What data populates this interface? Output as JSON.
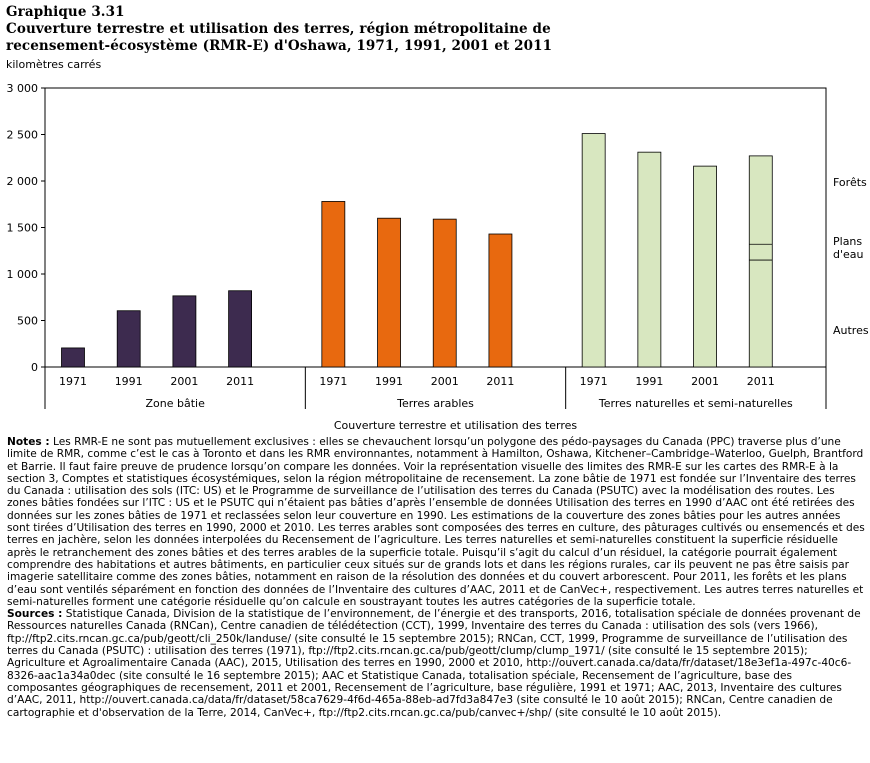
{
  "title": {
    "line1": "Graphique  3.31",
    "line2": "Couverture terrestre et utilisation des terres, région métropolitaine de",
    "line3": "recensement-écosystème (RMR-E) d'Oshawa, 1971, 1991, 2001 et 2011"
  },
  "unit_label": "kilomètres carrés",
  "chart_data": {
    "type": "bar",
    "title": "Couverture terrestre et utilisation des terres, région métropolitaine de recensement-écosystème (RMR-E) d'Oshawa, 1971, 1991, 2001 et 2011",
    "xlabel": "Couverture terrestre et utilisation des terres",
    "ylabel": "kilomètres carrés",
    "ylim": [
      0,
      3000
    ],
    "yticks": [
      0,
      500,
      1000,
      1500,
      2000,
      2500,
      3000
    ],
    "ytick_labels": [
      "0",
      "500",
      "1 000",
      "1 500",
      "2 000",
      "2 500",
      "3 000"
    ],
    "groups": [
      {
        "name": "Zone bâtie",
        "color": "#3d2b4f",
        "categories": [
          "1971",
          "1991",
          "2001",
          "2011"
        ],
        "values": [
          205,
          605,
          765,
          820
        ]
      },
      {
        "name": "Terres arables",
        "color": "#e8690f",
        "categories": [
          "1971",
          "1991",
          "2001",
          "2011"
        ],
        "values": [
          1780,
          1600,
          1590,
          1430
        ]
      },
      {
        "name": "Terres naturelles et semi-naturelles",
        "color": "#d8e7c0",
        "categories": [
          "1971",
          "1991",
          "2001",
          "2011"
        ],
        "values": [
          2510,
          2310,
          2160,
          2270
        ]
      }
    ],
    "stacked_last_bar_segments": [
      {
        "label": "Autres",
        "value": 1150
      },
      {
        "label": "Plans d'eau",
        "value": 170
      },
      {
        "label": "Forêts",
        "value": 950
      }
    ],
    "annotations": [
      "Forêts",
      "Plans",
      "d'eau",
      "Autres"
    ]
  },
  "notes": {
    "notes_label": "Notes :",
    "notes_text": " Les RMR-E ne sont pas mutuellement exclusives : elles se chevauchent lorsqu’un polygone des pédo-paysages du Canada (PPC) traverse plus d’une limite de RMR, comme c’est le cas à Toronto et dans les RMR environnantes, notamment à Hamilton, Oshawa, Kitchener–Cambridge–Waterloo, Guelph, Brantford et Barrie. Il faut faire preuve de prudence lorsqu’on compare les données. Voir la représentation visuelle des limites des RMR-E sur les cartes des RMR-E à la section 3, Comptes et statistiques écosystémiques, selon la région métropolitaine de recensement. La zone bâtie de 1971 est fondée sur l’Inventaire des terres du Canada :  utilisation des sols  (ITC: US) et le Programme de surveillance de l’utilisation des terres du Canada (PSUTC) avec la modélisation des routes. Les zones bâties fondées sur l’ITC : US et le PSUTC qui n’étaient pas bâties d’après l’ensemble de données Utilisation des terres en 1990 d’AAC ont été retirées des données sur les zones bâties de 1971 et reclassées selon leur couverture en 1990. Les estimations de la couverture des zones bâties pour les autres années sont tirées d’Utilisation des terres en 1990, 2000 et 2010. Les terres arables sont composées des terres en culture, des pâturages cultivés ou ensemencés et des terres en jachère, selon les données interpolées du Recensement de l’agriculture. Les terres naturelles et semi-naturelles constituent la superficie résiduelle après le retranchement des zones bâties et des terres arables de la superficie totale. Puisqu’il s’agit du calcul d’un résiduel, la catégorie pourrait également comprendre des habitations et autres bâtiments, en particulier ceux situés sur de grands lots et dans les régions rurales, car ils peuvent ne pas être saisis par imagerie satellitaire comme des zones bâties, notamment en raison de la résolution des données et du couvert arborescent. Pour 2011, les forêts et les plans d’eau sont ventilés séparément en fonction des données de l’Inventaire des cultures d’AAC, 2011 et de CanVec+, respectivement. Les autres terres naturelles et semi-naturelles forment une catégorie résiduelle qu’on calcule en soustrayant toutes les autres catégories de la superficie totale.",
    "sources_label": "Sources :",
    "sources_text": " Statistique Canada, Division de la statistique de l’environnement, de l’énergie et des transports, 2016, totalisation spéciale de données provenant de Ressources naturelles Canada (RNCan), Centre canadien de télédétection (CCT), 1999, Inventaire des terres du Canada : utilisation des sols (vers 1966), ftp://ftp2.cits.rncan.gc.ca/pub/geott/cli_250k/landuse/ (site consulté le 15 septembre 2015); RNCan, CCT, 1999, Programme de surveillance de l’utilisation des terres du Canada (PSUTC) : utilisation des terres (1971), ftp://ftp2.cits.rncan.gc.ca/pub/geott/clump/clump_1971/ (site consulté le 15 septembre 2015); Agriculture et Agroalimentaire Canada (AAC), 2015, Utilisation des terres en 1990, 2000 et 2010, http://ouvert.canada.ca/data/fr/dataset/18e3ef1a-497c-40c6-8326-aac1a34a0dec (site consulté le 16 septembre 2015); AAC et Statistique Canada, totalisation spéciale, Recensement de l’agriculture, base des composantes géographiques de recensement, 2011 et 2001, Recensement de l’agriculture, base régulière, 1991 et 1971; AAC, 2013, Inventaire des cultures d’AAC, 2011, http://ouvert.canada.ca/data/fr/dataset/58ca7629-4f6d-465a-88eb-ad7fd3a847e3 (site consulté le 10 août 2015); RNCan, Centre canadien de cartographie et d'observation de la Terre, 2014, CanVec+, ftp://ftp2.cits.rncan.gc.ca/pub/canvec+/shp/ (site consulté le 10 août 2015)."
  }
}
